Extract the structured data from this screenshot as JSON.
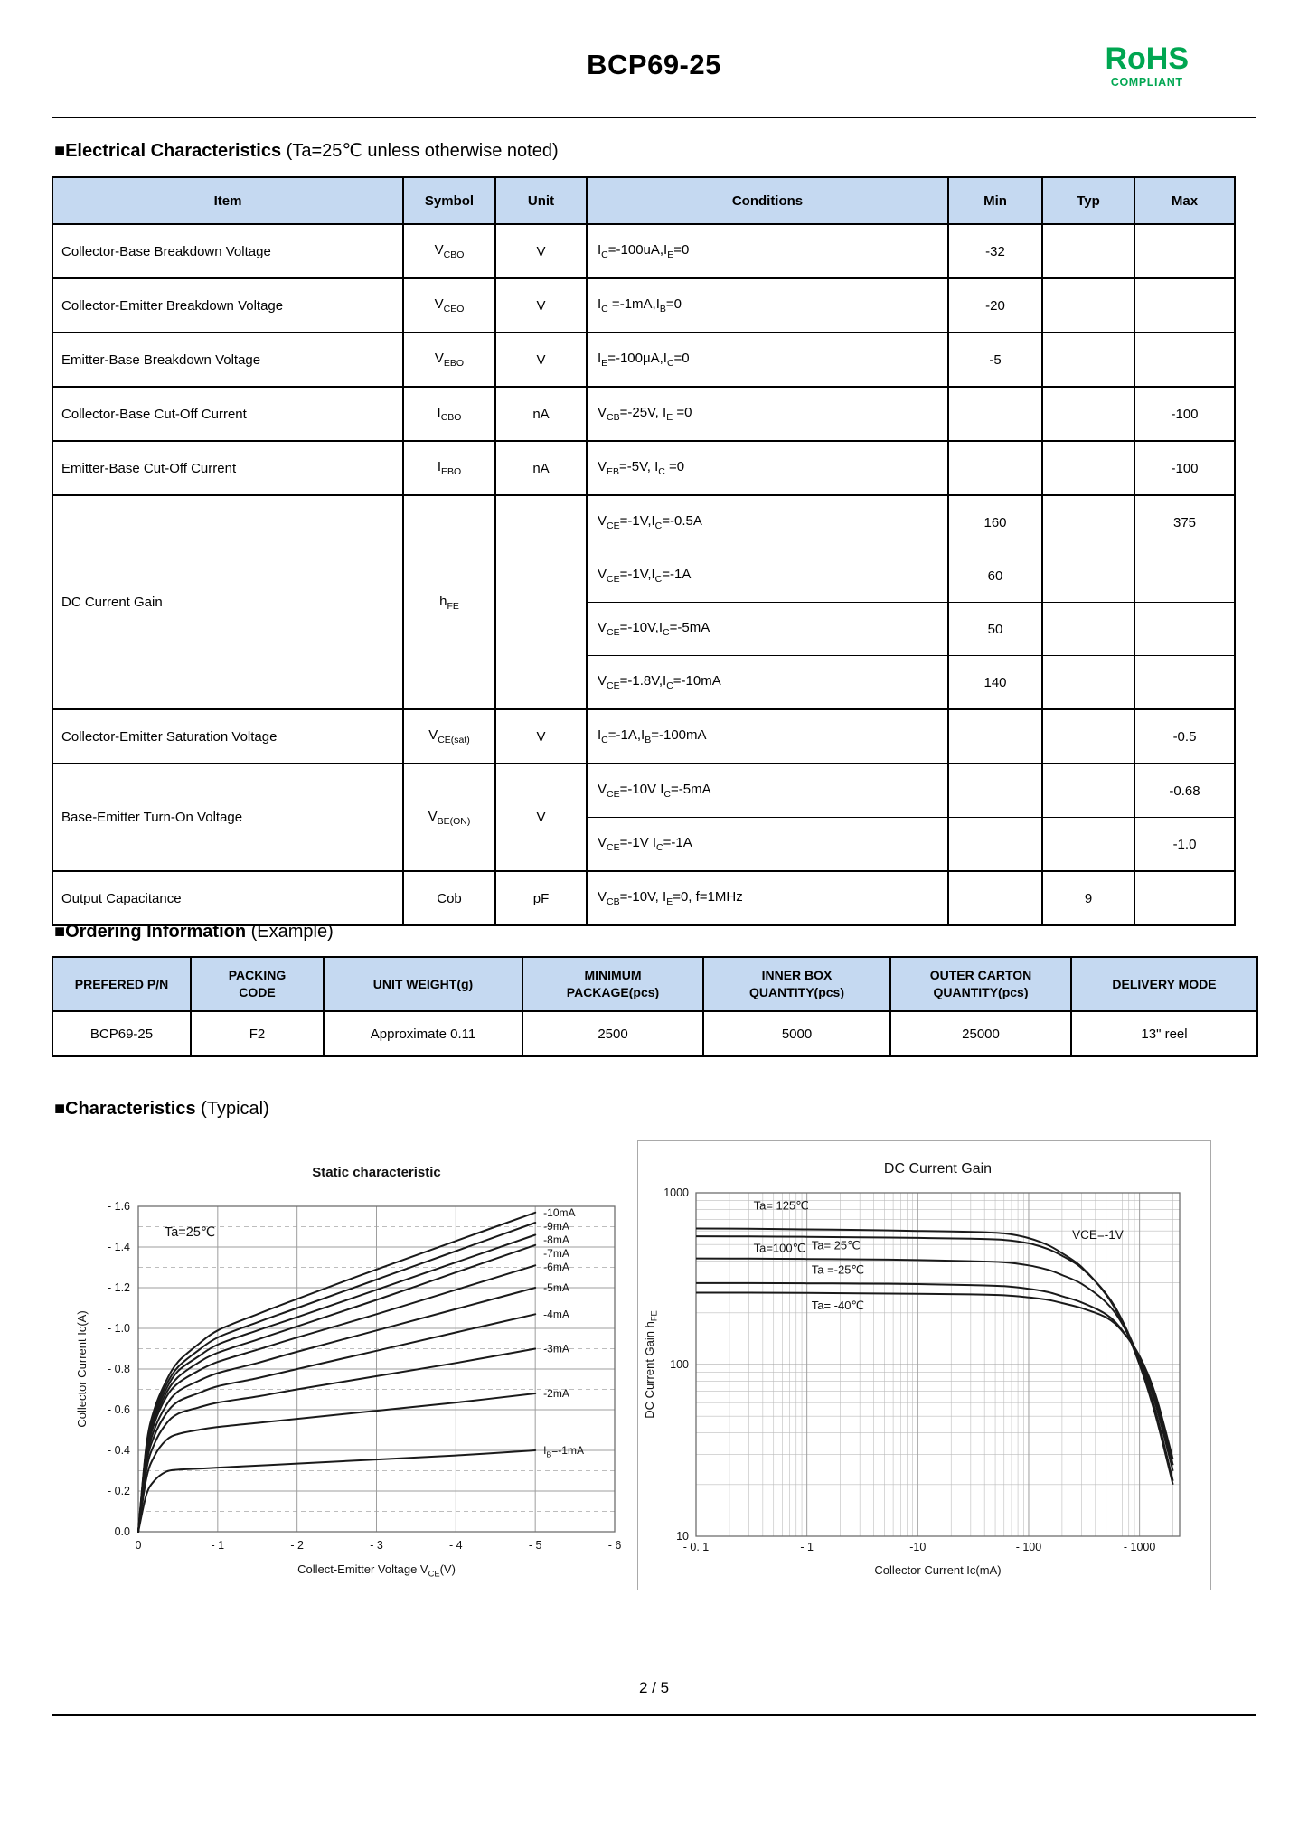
{
  "page": {
    "title": "BCP69-25",
    "footer": "2 / 5"
  },
  "rohs": {
    "line1": "RoHS",
    "line2": "COMPLIANT",
    "color": "#00A651"
  },
  "colors": {
    "table_header_bg": "#C5D9F1",
    "curve": "#1a1a1a",
    "grid_major": "#9e9e9e",
    "grid_minor": "#bdbdbd"
  },
  "sections": {
    "electrical": {
      "heading_bold": "■Electrical Characteristics",
      "heading_rest": " (Ta=25℃ unless otherwise noted)"
    },
    "ordering": {
      "heading_bold": "■Ordering Information",
      "heading_rest": " (Example)"
    },
    "characteristics": {
      "heading_bold": "■Characteristics",
      "heading_rest": " (Typical)"
    }
  },
  "elec_table": {
    "headers": [
      "Item",
      "Symbol",
      "Unit",
      "Conditions",
      "Min",
      "Typ",
      "Max"
    ],
    "rows": [
      {
        "item": "Collector-Base Breakdown Voltage",
        "sym": [
          {
            "t": "V"
          },
          {
            "t": "CBO",
            "sub": true
          }
        ],
        "unit": "V",
        "cond": [
          {
            "t": "I"
          },
          {
            "t": "C",
            "sub": true
          },
          {
            "t": "=-100uA,I"
          },
          {
            "t": "E",
            "sub": true
          },
          {
            "t": "=0"
          }
        ],
        "min": "-32",
        "typ": "",
        "max": ""
      },
      {
        "item": "Collector-Emitter Breakdown Voltage",
        "sym": [
          {
            "t": "V"
          },
          {
            "t": "CEO",
            "sub": true
          }
        ],
        "unit": "V",
        "cond": [
          {
            "t": "I"
          },
          {
            "t": "C",
            "sub": true
          },
          {
            "t": " =-1mA,I"
          },
          {
            "t": "B",
            "sub": true
          },
          {
            "t": "=0"
          }
        ],
        "min": "-20",
        "typ": "",
        "max": ""
      },
      {
        "item": "Emitter-Base Breakdown Voltage",
        "sym": [
          {
            "t": "V"
          },
          {
            "t": "EBO",
            "sub": true
          }
        ],
        "unit": "V",
        "cond": [
          {
            "t": "I"
          },
          {
            "t": "E",
            "sub": true
          },
          {
            "t": "=-100μA,I"
          },
          {
            "t": "C",
            "sub": true
          },
          {
            "t": "=0"
          }
        ],
        "min": "-5",
        "typ": "",
        "max": ""
      },
      {
        "item": "Collector-Base Cut-Off Current",
        "sym": [
          {
            "t": "I"
          },
          {
            "t": "CBO",
            "sub": true
          }
        ],
        "unit": "nA",
        "cond": [
          {
            "t": "V"
          },
          {
            "t": "CB",
            "sub": true
          },
          {
            "t": "=-25V, I"
          },
          {
            "t": "E",
            "sub": true
          },
          {
            "t": " =0"
          }
        ],
        "min": "",
        "typ": "",
        "max": "-100"
      },
      {
        "item": "Emitter-Base Cut-Off Current",
        "sym": [
          {
            "t": "I"
          },
          {
            "t": "EBO",
            "sub": true
          }
        ],
        "unit": "nA",
        "cond": [
          {
            "t": "V"
          },
          {
            "t": "EB",
            "sub": true
          },
          {
            "t": "=-5V, I"
          },
          {
            "t": "C",
            "sub": true
          },
          {
            "t": " =0"
          }
        ],
        "min": "",
        "typ": "",
        "max": "-100"
      },
      {
        "item": "DC Current Gain",
        "sym": [
          {
            "t": "h"
          },
          {
            "t": "FE",
            "sub": true
          }
        ],
        "unit": "",
        "cond": [
          {
            "t": "V"
          },
          {
            "t": "CE",
            "sub": true
          },
          {
            "t": "=-1V,I"
          },
          {
            "t": "C",
            "sub": true
          },
          {
            "t": "=-0.5A"
          }
        ],
        "min": "160",
        "typ": "",
        "max": "375"
      },
      {
        "cond": [
          {
            "t": "V"
          },
          {
            "t": "CE",
            "sub": true
          },
          {
            "t": "=-1V,I"
          },
          {
            "t": "C",
            "sub": true
          },
          {
            "t": "=-1A"
          }
        ],
        "min": "60",
        "typ": "",
        "max": ""
      },
      {
        "cond": [
          {
            "t": "V"
          },
          {
            "t": "CE",
            "sub": true
          },
          {
            "t": "=-10V,I"
          },
          {
            "t": "C",
            "sub": true
          },
          {
            "t": "=-5mA"
          }
        ],
        "min": "50",
        "typ": "",
        "max": ""
      },
      {
        "cond": [
          {
            "t": "V"
          },
          {
            "t": "CE",
            "sub": true
          },
          {
            "t": "=-1.8V,I"
          },
          {
            "t": "C",
            "sub": true
          },
          {
            "t": "=-10mA"
          }
        ],
        "min": "140",
        "typ": "",
        "max": ""
      },
      {
        "item": "Collector-Emitter Saturation Voltage",
        "sym": [
          {
            "t": "V"
          },
          {
            "t": "CE(sat)",
            "sub": true
          }
        ],
        "unit": "V",
        "cond": [
          {
            "t": "I"
          },
          {
            "t": "C",
            "sub": true
          },
          {
            "t": "=-1A,I"
          },
          {
            "t": "B",
            "sub": true
          },
          {
            "t": "=-100mA"
          }
        ],
        "min": "",
        "typ": "",
        "max": "-0.5"
      },
      {
        "item": "Base-Emitter Turn-On Voltage",
        "sym": [
          {
            "t": "V"
          },
          {
            "t": "BE(ON)",
            "sub": true
          }
        ],
        "unit": "V",
        "cond": [
          {
            "t": "V"
          },
          {
            "t": "CE",
            "sub": true
          },
          {
            "t": "=-10V I"
          },
          {
            "t": "C",
            "sub": true
          },
          {
            "t": "=-5mA"
          }
        ],
        "min": "",
        "typ": "",
        "max": "-0.68"
      },
      {
        "cond": [
          {
            "t": "V"
          },
          {
            "t": "CE",
            "sub": true
          },
          {
            "t": "=-1V I"
          },
          {
            "t": "C",
            "sub": true
          },
          {
            "t": "=-1A"
          }
        ],
        "min": "",
        "typ": "",
        "max": "-1.0"
      },
      {
        "item": "Output Capacitance",
        "sym": [
          {
            "t": "Cob"
          }
        ],
        "unit": "pF",
        "cond": [
          {
            "t": "V"
          },
          {
            "t": "CB",
            "sub": true
          },
          {
            "t": "=-10V, I"
          },
          {
            "t": "E",
            "sub": true
          },
          {
            "t": "=0, f=1MHz"
          }
        ],
        "min": "",
        "typ": "9",
        "max": ""
      }
    ]
  },
  "ordering_table": {
    "headers": [
      "PREFERED P/N",
      "PACKING\nCODE",
      "UNIT WEIGHT(g)",
      "MINIMUM\nPACKAGE(pcs)",
      "INNER BOX\nQUANTITY(pcs)",
      "OUTER CARTON\nQUANTITY(pcs)",
      "DELIVERY MODE"
    ],
    "row": [
      "BCP69-25",
      "F2",
      "Approximate 0.11",
      "2500",
      "5000",
      "25000",
      "13\" reel"
    ]
  },
  "chart_data": [
    {
      "id": "static",
      "type": "line",
      "title": "Static characteristic",
      "annotation": {
        "text": "Ta=25℃",
        "x": -0.33,
        "y": -1.475
      },
      "xlabel_runs": [
        {
          "t": "Collect-Emitter Voltage  V"
        },
        {
          "t": "CE",
          "sub": true
        },
        {
          "t": "(V)"
        }
      ],
      "ylabel_runs": [
        {
          "t": "Collector Current  Ic(A)"
        }
      ],
      "xlim": [
        0,
        -6
      ],
      "ylim": [
        0,
        -1.6
      ],
      "grid": true,
      "xtick_vals": [
        0,
        1,
        2,
        3,
        4,
        5,
        6
      ],
      "xtick_labels": [
        "0",
        "- 1",
        "- 2",
        "- 3",
        "- 4",
        "- 5",
        "- 6"
      ],
      "ytick_vals": [
        1.6,
        1.4,
        1.2,
        1.0,
        0.8,
        0.6,
        0.4,
        0.2,
        0
      ],
      "ytick_labels": [
        "- 1.6",
        "- 1.4",
        "- 1.2",
        "- 1.0",
        "- 0.8",
        "- 0.6",
        "- 0.4",
        "- 0.2",
        "0.0"
      ],
      "x_samples": [
        0,
        -0.1,
        -0.2,
        -0.35,
        -0.5,
        -0.75,
        -1,
        -1.5,
        -2,
        -3,
        -4,
        -5
      ],
      "series": [
        {
          "label_runs": [
            {
              "t": "-10mA"
            }
          ],
          "values": [
            0,
            -0.42,
            -0.6,
            -0.74,
            -0.835,
            -0.92,
            -0.99,
            -1.07,
            -1.145,
            -1.29,
            -1.43,
            -1.57
          ]
        },
        {
          "label_runs": [
            {
              "t": "-9mA"
            }
          ],
          "values": [
            0,
            -0.41,
            -0.585,
            -0.72,
            -0.81,
            -0.89,
            -0.955,
            -1.03,
            -1.1,
            -1.24,
            -1.38,
            -1.52
          ]
        },
        {
          "label_runs": [
            {
              "t": "-8mA"
            }
          ],
          "values": [
            0,
            -0.4,
            -0.57,
            -0.7,
            -0.79,
            -0.86,
            -0.92,
            -0.99,
            -1.055,
            -1.19,
            -1.325,
            -1.46
          ]
        },
        {
          "label_runs": [
            {
              "t": "-7mA"
            }
          ],
          "values": [
            0,
            -0.385,
            -0.55,
            -0.68,
            -0.76,
            -0.83,
            -0.88,
            -0.945,
            -1.01,
            -1.14,
            -1.275,
            -1.41
          ]
        },
        {
          "label_runs": [
            {
              "t": "-6mA"
            }
          ],
          "values": [
            0,
            -0.37,
            -0.53,
            -0.66,
            -0.73,
            -0.79,
            -0.835,
            -0.895,
            -0.955,
            -1.07,
            -1.19,
            -1.31
          ]
        },
        {
          "label_runs": [
            {
              "t": "-5mA"
            }
          ],
          "values": [
            0,
            -0.35,
            -0.5,
            -0.62,
            -0.69,
            -0.74,
            -0.78,
            -0.83,
            -0.885,
            -0.99,
            -1.095,
            -1.2
          ]
        },
        {
          "label_runs": [
            {
              "t": "-4mA"
            }
          ],
          "values": [
            0,
            -0.33,
            -0.47,
            -0.58,
            -0.64,
            -0.68,
            -0.715,
            -0.755,
            -0.8,
            -0.89,
            -0.98,
            -1.07
          ]
        },
        {
          "label_runs": [
            {
              "t": "-3mA"
            }
          ],
          "values": [
            0,
            -0.3,
            -0.43,
            -0.53,
            -0.58,
            -0.61,
            -0.635,
            -0.665,
            -0.7,
            -0.765,
            -0.83,
            -0.9
          ]
        },
        {
          "label_runs": [
            {
              "t": "-2mA"
            }
          ],
          "values": [
            0,
            -0.26,
            -0.37,
            -0.45,
            -0.48,
            -0.5,
            -0.515,
            -0.535,
            -0.555,
            -0.595,
            -0.635,
            -0.68
          ]
        },
        {
          "label_runs": [
            {
              "t": "I"
            },
            {
              "t": "B",
              "sub": true
            },
            {
              "t": "=-1mA"
            }
          ],
          "values": [
            0,
            -0.18,
            -0.25,
            -0.295,
            -0.305,
            -0.31,
            -0.315,
            -0.325,
            -0.335,
            -0.355,
            -0.375,
            -0.4
          ]
        }
      ]
    },
    {
      "id": "hfe",
      "type": "line",
      "xscale": "log",
      "yscale": "log",
      "title": "DC Current Gain",
      "annotation": {
        "text": "VCE=-1V",
        "x": 420,
        "y": 540
      },
      "xlabel_runs": [
        {
          "t": "Collector Current   Ic(mA)"
        }
      ],
      "ylabel_runs": [
        {
          "t": "DC Current Gain   h"
        },
        {
          "t": "FE",
          "sub": true
        }
      ],
      "xlim": [
        -0.1,
        -2300
      ],
      "ylim": [
        10,
        1000
      ],
      "grid": true,
      "xtick_vals": [
        0.1,
        1,
        10,
        100,
        1000
      ],
      "xtick_labels": [
        "- 0. 1",
        "- 1",
        "-10",
        "- 100",
        "- 1000"
      ],
      "ytick_vals": [
        10,
        100,
        1000
      ],
      "ytick_labels": [
        "10",
        "100",
        "1000"
      ],
      "x_samples": [
        0.1,
        0.3,
        1,
        3,
        10,
        30,
        60,
        100,
        150,
        200,
        300,
        500,
        700,
        1000,
        1400,
        2000
      ],
      "series": [
        {
          "name": "Ta= 125℃",
          "values": [
            620,
            618,
            612,
            608,
            600,
            592,
            580,
            545,
            495,
            445,
            370,
            255,
            175,
            100,
            50,
            20
          ],
          "label_at": [
            0.33,
            800
          ]
        },
        {
          "name": "Ta=100℃",
          "values": [
            558,
            557,
            554,
            551,
            546,
            540,
            532,
            508,
            470,
            430,
            365,
            258,
            180,
            105,
            53,
            21
          ],
          "label_at": [
            0.33,
            452
          ]
        },
        {
          "name": "Ta= 25℃",
          "values": [
            415,
            414,
            412,
            410,
            406,
            400,
            394,
            378,
            356,
            332,
            295,
            230,
            172,
            108,
            58,
            24
          ],
          "label_at": [
            1.1,
            470
          ]
        },
        {
          "name": "Ta =-25℃",
          "values": [
            298,
            298,
            297,
            296,
            294,
            290,
            286,
            276,
            264,
            250,
            230,
            196,
            158,
            110,
            62,
            26
          ],
          "label_at": [
            1.1,
            338
          ]
        },
        {
          "name": "Ta= -40℃",
          "values": [
            262,
            262,
            261,
            260,
            258,
            256,
            253,
            246,
            238,
            228,
            213,
            188,
            156,
            112,
            66,
            28
          ],
          "label_at": [
            1.1,
            210
          ]
        }
      ]
    }
  ]
}
